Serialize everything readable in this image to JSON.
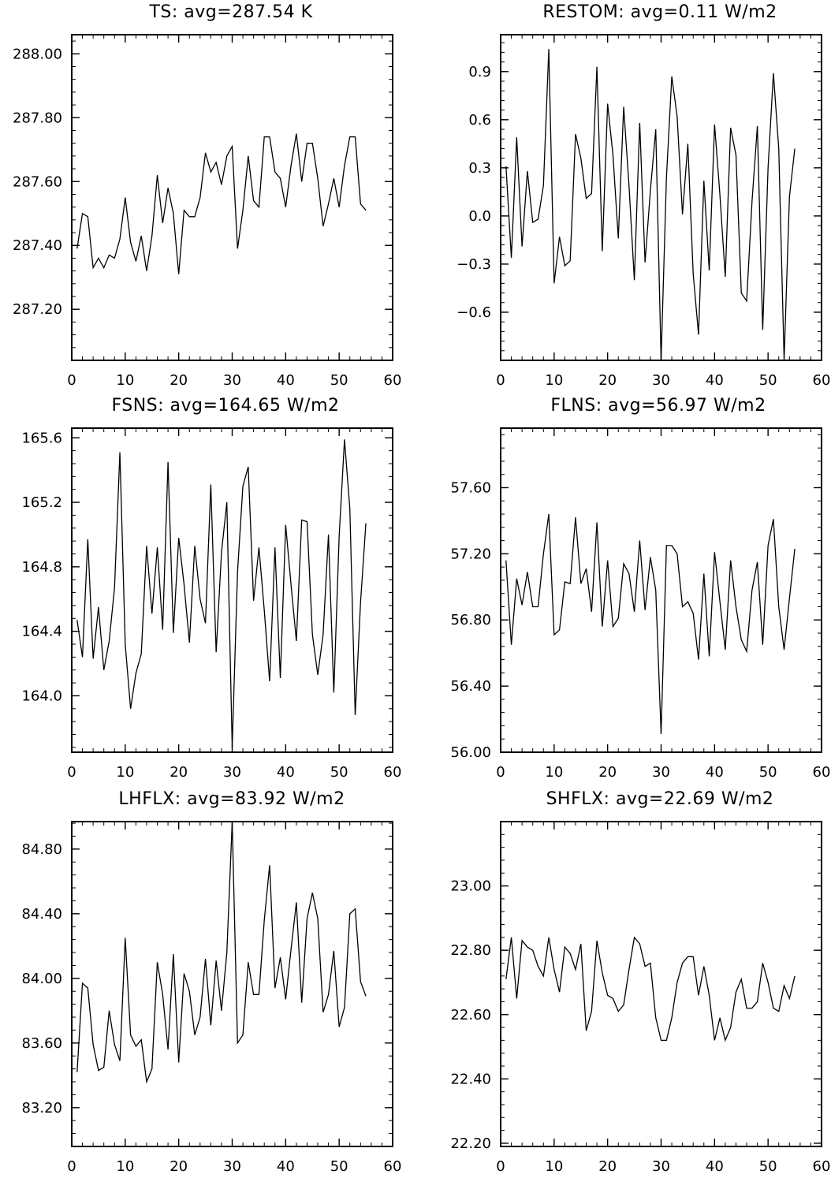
{
  "chart_data": [
    {
      "type": "line",
      "title": "TS: avg=287.54 K",
      "xlabel": "",
      "ylabel": "",
      "xlim": [
        0,
        60
      ],
      "ylim": [
        287.04,
        288.06
      ],
      "xticks": [
        "0",
        "10",
        "20",
        "30",
        "40",
        "50",
        "60"
      ],
      "yticks": [
        {
          "v": 287.2,
          "label": "287.20"
        },
        {
          "v": 287.4,
          "label": "287.40"
        },
        {
          "v": 287.6,
          "label": "287.60"
        },
        {
          "v": 287.8,
          "label": "287.80"
        },
        {
          "v": 288.0,
          "label": "288.00"
        }
      ],
      "series": [
        {
          "x": [
            1,
            2,
            3,
            4,
            5,
            6,
            7,
            8,
            9,
            10,
            11,
            12,
            13,
            14,
            15,
            16,
            17,
            18,
            19,
            20,
            21,
            22,
            23,
            24,
            25,
            26,
            27,
            28,
            29,
            30,
            31,
            32,
            33,
            34,
            35,
            36,
            37,
            38,
            39,
            40,
            41,
            42,
            43,
            44,
            45,
            46,
            47,
            48,
            49,
            50,
            51,
            52,
            53,
            54,
            55
          ],
          "values": [
            287.39,
            287.5,
            287.49,
            287.33,
            287.36,
            287.33,
            287.37,
            287.36,
            287.42,
            287.55,
            287.41,
            287.35,
            287.43,
            287.32,
            287.43,
            287.62,
            287.47,
            287.58,
            287.5,
            287.31,
            287.51,
            287.49,
            287.49,
            287.55,
            287.69,
            287.63,
            287.66,
            287.59,
            287.68,
            287.71,
            287.39,
            287.51,
            287.68,
            287.54,
            287.52,
            287.74,
            287.74,
            287.63,
            287.61,
            287.52,
            287.65,
            287.75,
            287.6,
            287.72,
            287.72,
            287.61,
            287.46,
            287.53,
            287.61,
            287.52,
            287.65,
            287.74,
            287.74,
            287.53,
            287.51
          ]
        }
      ]
    },
    {
      "type": "line",
      "title": "RESTOM: avg=0.11 W/m2",
      "xlabel": "",
      "ylabel": "",
      "xlim": [
        0,
        60
      ],
      "ylim": [
        -0.9,
        1.13
      ],
      "xticks": [
        "0",
        "10",
        "20",
        "30",
        "40",
        "50",
        "60"
      ],
      "yticks": [
        {
          "v": -0.6,
          "label": "−0.6"
        },
        {
          "v": -0.3,
          "label": "−0.3"
        },
        {
          "v": 0.0,
          "label": "0.0"
        },
        {
          "v": 0.3,
          "label": "0.3"
        },
        {
          "v": 0.6,
          "label": "0.6"
        },
        {
          "v": 0.9,
          "label": "0.9"
        }
      ],
      "series": [
        {
          "x": [
            1,
            2,
            3,
            4,
            5,
            6,
            7,
            8,
            9,
            10,
            11,
            12,
            13,
            14,
            15,
            16,
            17,
            18,
            19,
            20,
            21,
            22,
            23,
            24,
            25,
            26,
            27,
            28,
            29,
            30,
            31,
            32,
            33,
            34,
            35,
            36,
            37,
            38,
            39,
            40,
            41,
            42,
            43,
            44,
            45,
            46,
            47,
            48,
            49,
            50,
            51,
            52,
            53,
            54,
            55
          ],
          "values": [
            0.31,
            -0.26,
            0.49,
            -0.19,
            0.28,
            -0.04,
            -0.02,
            0.19,
            1.04,
            -0.42,
            -0.13,
            -0.31,
            -0.28,
            0.51,
            0.36,
            0.11,
            0.14,
            0.93,
            -0.22,
            0.7,
            0.38,
            -0.14,
            0.68,
            0.19,
            -0.4,
            0.58,
            -0.29,
            0.16,
            0.54,
            -0.9,
            0.24,
            0.87,
            0.62,
            0.01,
            0.45,
            -0.36,
            -0.74,
            0.22,
            -0.34,
            0.57,
            0.13,
            -0.38,
            0.55,
            0.38,
            -0.48,
            -0.53,
            0.09,
            0.56,
            -0.71,
            0.3,
            0.89,
            0.42,
            -0.9,
            0.12,
            0.42
          ]
        }
      ]
    },
    {
      "type": "line",
      "title": "FSNS: avg=164.65 W/m2",
      "xlabel": "",
      "ylabel": "",
      "xlim": [
        0,
        60
      ],
      "ylim": [
        163.65,
        165.66
      ],
      "xticks": [
        "0",
        "10",
        "20",
        "30",
        "40",
        "50",
        "60"
      ],
      "yticks": [
        {
          "v": 164.0,
          "label": "164.0"
        },
        {
          "v": 164.4,
          "label": "164.4"
        },
        {
          "v": 164.8,
          "label": "164.8"
        },
        {
          "v": 165.2,
          "label": "165.2"
        },
        {
          "v": 165.6,
          "label": "165.6"
        }
      ],
      "series": [
        {
          "x": [
            1,
            2,
            3,
            4,
            5,
            6,
            7,
            8,
            9,
            10,
            11,
            12,
            13,
            14,
            15,
            16,
            17,
            18,
            19,
            20,
            21,
            22,
            23,
            24,
            25,
            26,
            27,
            28,
            29,
            30,
            31,
            32,
            33,
            34,
            35,
            36,
            37,
            38,
            39,
            40,
            41,
            42,
            43,
            44,
            45,
            46,
            47,
            48,
            49,
            50,
            51,
            52,
            53,
            54,
            55
          ],
          "values": [
            164.47,
            164.24,
            164.97,
            164.23,
            164.55,
            164.16,
            164.34,
            164.67,
            165.51,
            164.32,
            163.92,
            164.14,
            164.26,
            164.93,
            164.51,
            164.92,
            164.41,
            165.45,
            164.39,
            164.98,
            164.69,
            164.33,
            164.93,
            164.6,
            164.45,
            165.31,
            164.27,
            164.89,
            165.2,
            163.68,
            164.77,
            165.3,
            165.42,
            164.59,
            164.92,
            164.53,
            164.09,
            164.92,
            164.11,
            165.06,
            164.69,
            164.34,
            165.09,
            165.08,
            164.38,
            164.13,
            164.38,
            165.0,
            164.02,
            164.99,
            165.59,
            165.16,
            163.88,
            164.58,
            165.07
          ]
        }
      ]
    },
    {
      "type": "line",
      "title": "FLNS: avg=56.97 W/m2",
      "xlabel": "",
      "ylabel": "",
      "xlim": [
        0,
        60
      ],
      "ylim": [
        56.0,
        57.96
      ],
      "xticks": [
        "0",
        "10",
        "20",
        "30",
        "40",
        "50",
        "60"
      ],
      "yticks": [
        {
          "v": 56.0,
          "label": "56.00"
        },
        {
          "v": 56.4,
          "label": "56.40"
        },
        {
          "v": 56.8,
          "label": "56.80"
        },
        {
          "v": 57.2,
          "label": "57.20"
        },
        {
          "v": 57.6,
          "label": "57.60"
        }
      ],
      "series": [
        {
          "x": [
            1,
            2,
            3,
            4,
            5,
            6,
            7,
            8,
            9,
            10,
            11,
            12,
            13,
            14,
            15,
            16,
            17,
            18,
            19,
            20,
            21,
            22,
            23,
            24,
            25,
            26,
            27,
            28,
            29,
            30,
            31,
            32,
            33,
            34,
            35,
            36,
            37,
            38,
            39,
            40,
            41,
            42,
            43,
            44,
            45,
            46,
            47,
            48,
            49,
            50,
            51,
            52,
            53,
            54,
            55
          ],
          "values": [
            57.16,
            56.65,
            57.05,
            56.89,
            57.09,
            56.88,
            56.88,
            57.2,
            57.44,
            56.71,
            56.74,
            57.03,
            57.02,
            57.42,
            57.02,
            57.11,
            56.85,
            57.39,
            56.76,
            57.16,
            56.76,
            56.81,
            57.14,
            57.08,
            56.85,
            57.28,
            56.86,
            57.18,
            56.98,
            56.11,
            57.25,
            57.25,
            57.2,
            56.88,
            56.91,
            56.84,
            56.56,
            57.08,
            56.58,
            57.21,
            56.91,
            56.62,
            57.16,
            56.88,
            56.68,
            56.61,
            56.98,
            57.15,
            56.65,
            57.25,
            57.41,
            56.88,
            56.62,
            56.93,
            57.23
          ]
        }
      ]
    },
    {
      "type": "line",
      "title": "LHFLX: avg=83.92 W/m2",
      "xlabel": "",
      "ylabel": "",
      "xlim": [
        0,
        60
      ],
      "ylim": [
        82.96,
        84.97
      ],
      "xticks": [
        "0",
        "10",
        "20",
        "30",
        "40",
        "50",
        "60"
      ],
      "yticks": [
        {
          "v": 83.2,
          "label": "83.20"
        },
        {
          "v": 83.6,
          "label": "83.60"
        },
        {
          "v": 84.0,
          "label": "84.00"
        },
        {
          "v": 84.4,
          "label": "84.40"
        },
        {
          "v": 84.8,
          "label": "84.80"
        }
      ],
      "series": [
        {
          "x": [
            1,
            2,
            3,
            4,
            5,
            6,
            7,
            8,
            9,
            10,
            11,
            12,
            13,
            14,
            15,
            16,
            17,
            18,
            19,
            20,
            21,
            22,
            23,
            24,
            25,
            26,
            27,
            28,
            29,
            30,
            31,
            32,
            33,
            34,
            35,
            36,
            37,
            38,
            39,
            40,
            41,
            42,
            43,
            44,
            45,
            46,
            47,
            48,
            49,
            50,
            51,
            52,
            53,
            54,
            55
          ],
          "values": [
            83.42,
            83.97,
            83.94,
            83.59,
            83.43,
            83.45,
            83.8,
            83.59,
            83.49,
            84.25,
            83.65,
            83.58,
            83.62,
            83.36,
            83.44,
            84.1,
            83.9,
            83.56,
            84.15,
            83.48,
            84.03,
            83.92,
            83.65,
            83.76,
            84.12,
            83.71,
            84.11,
            83.8,
            84.16,
            84.97,
            83.6,
            83.65,
            84.1,
            83.9,
            83.9,
            84.36,
            84.7,
            83.94,
            84.13,
            83.87,
            84.18,
            84.47,
            83.85,
            84.37,
            84.53,
            84.37,
            83.79,
            83.9,
            84.17,
            83.7,
            83.82,
            84.4,
            84.43,
            83.98,
            83.89
          ]
        }
      ]
    },
    {
      "type": "line",
      "title": "SHFLX: avg=22.69 W/m2",
      "xlabel": "",
      "ylabel": "",
      "xlim": [
        0,
        60
      ],
      "ylim": [
        22.19,
        23.2
      ],
      "xticks": [
        "0",
        "10",
        "20",
        "30",
        "40",
        "50",
        "60"
      ],
      "yticks": [
        {
          "v": 22.2,
          "label": "22.20"
        },
        {
          "v": 22.4,
          "label": "22.40"
        },
        {
          "v": 22.6,
          "label": "22.60"
        },
        {
          "v": 22.8,
          "label": "22.80"
        },
        {
          "v": 23.0,
          "label": "23.00"
        }
      ],
      "series": [
        {
          "x": [
            1,
            2,
            3,
            4,
            5,
            6,
            7,
            8,
            9,
            10,
            11,
            12,
            13,
            14,
            15,
            16,
            17,
            18,
            19,
            20,
            21,
            22,
            23,
            24,
            25,
            26,
            27,
            28,
            29,
            30,
            31,
            32,
            33,
            34,
            35,
            36,
            37,
            38,
            39,
            40,
            41,
            42,
            43,
            44,
            45,
            46,
            47,
            48,
            49,
            50,
            51,
            52,
            53,
            54,
            55
          ],
          "values": [
            22.71,
            22.84,
            22.65,
            22.83,
            22.81,
            22.8,
            22.75,
            22.72,
            22.84,
            22.74,
            22.67,
            22.81,
            22.79,
            22.74,
            22.82,
            22.55,
            22.61,
            22.83,
            22.73,
            22.66,
            22.65,
            22.61,
            22.63,
            22.74,
            22.84,
            22.82,
            22.75,
            22.76,
            22.59,
            22.52,
            22.52,
            22.59,
            22.7,
            22.76,
            22.78,
            22.78,
            22.66,
            22.75,
            22.66,
            22.52,
            22.59,
            22.52,
            22.56,
            22.67,
            22.71,
            22.62,
            22.62,
            22.64,
            22.76,
            22.7,
            22.62,
            22.61,
            22.69,
            22.65,
            22.72
          ]
        }
      ]
    }
  ]
}
